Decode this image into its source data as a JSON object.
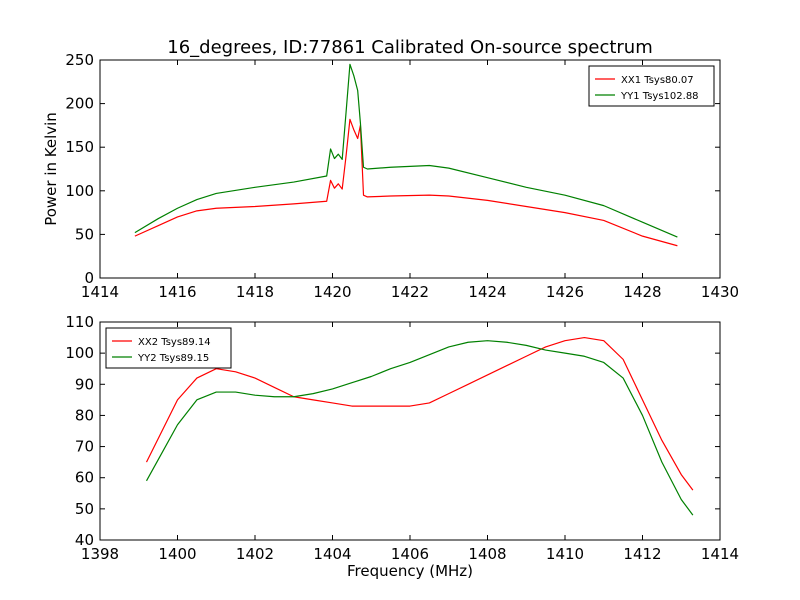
{
  "title": "16_degrees, ID:77861 Calibrated On-source spectrum",
  "colors": {
    "red": "#ff0000",
    "green": "#008000"
  },
  "chart_data": [
    {
      "type": "line",
      "ylabel": "Power in Kelvin",
      "xlabel": "",
      "xlim": [
        1414,
        1430
      ],
      "ylim": [
        0,
        250
      ],
      "xticks": [
        1414,
        1416,
        1418,
        1420,
        1422,
        1424,
        1426,
        1428,
        1430
      ],
      "yticks": [
        0,
        50,
        100,
        150,
        200,
        250
      ],
      "legend": "top-right",
      "series": [
        {
          "name": "XX1 Tsys80.07",
          "color": "#ff0000",
          "x": [
            1414.9,
            1415.5,
            1416.0,
            1416.5,
            1417.0,
            1418.0,
            1419.0,
            1419.85,
            1419.95,
            1420.05,
            1420.15,
            1420.25,
            1420.35,
            1420.45,
            1420.55,
            1420.65,
            1420.72,
            1420.8,
            1420.9,
            1421.5,
            1422.5,
            1423.0,
            1424.0,
            1425.0,
            1426.0,
            1427.0,
            1428.0,
            1428.9
          ],
          "y": [
            48,
            60,
            70,
            77,
            80,
            82,
            85,
            88,
            112,
            103,
            108,
            102,
            140,
            182,
            170,
            160,
            175,
            95,
            93,
            94,
            95,
            94,
            89,
            82,
            75,
            66,
            48,
            37
          ]
        },
        {
          "name": "YY1 Tsys102.88",
          "color": "#008000",
          "x": [
            1414.9,
            1415.5,
            1416.0,
            1416.5,
            1417.0,
            1418.0,
            1419.0,
            1419.85,
            1419.95,
            1420.05,
            1420.15,
            1420.25,
            1420.35,
            1420.45,
            1420.55,
            1420.65,
            1420.72,
            1420.8,
            1420.9,
            1421.5,
            1422.5,
            1423.0,
            1424.0,
            1425.0,
            1426.0,
            1427.0,
            1428.0,
            1428.9
          ],
          "y": [
            52,
            68,
            80,
            90,
            97,
            104,
            110,
            117,
            148,
            137,
            142,
            136,
            190,
            245,
            232,
            215,
            178,
            127,
            125,
            127,
            129,
            126,
            115,
            104,
            95,
            83,
            64,
            47
          ]
        }
      ]
    },
    {
      "type": "line",
      "ylabel": "",
      "xlabel": "Frequency (MHz)",
      "xlim": [
        1398,
        1414
      ],
      "ylim": [
        40,
        110
      ],
      "xticks": [
        1398,
        1400,
        1402,
        1404,
        1406,
        1408,
        1410,
        1412,
        1414
      ],
      "yticks": [
        40,
        50,
        60,
        70,
        80,
        90,
        100,
        110
      ],
      "legend": "top-left",
      "series": [
        {
          "name": "XX2 Tsys89.14",
          "color": "#ff0000",
          "x": [
            1399.2,
            1399.6,
            1400.0,
            1400.5,
            1401.0,
            1401.5,
            1402.0,
            1402.5,
            1403.0,
            1403.5,
            1404.0,
            1404.5,
            1405.0,
            1405.5,
            1406.0,
            1406.5,
            1407.0,
            1407.5,
            1408.0,
            1408.5,
            1409.0,
            1409.5,
            1410.0,
            1410.5,
            1411.0,
            1411.5,
            1412.0,
            1412.5,
            1413.0,
            1413.3
          ],
          "y": [
            65,
            75,
            85,
            92,
            95,
            94,
            92,
            89,
            86,
            85,
            84,
            83,
            83,
            83,
            83,
            84,
            87,
            90,
            93,
            96,
            99,
            102,
            104,
            105,
            104,
            98,
            85,
            72,
            61,
            56
          ]
        },
        {
          "name": "YY2 Tsys89.15",
          "color": "#008000",
          "x": [
            1399.2,
            1399.6,
            1400.0,
            1400.5,
            1401.0,
            1401.5,
            1402.0,
            1402.5,
            1403.0,
            1403.5,
            1404.0,
            1404.5,
            1405.0,
            1405.5,
            1406.0,
            1406.5,
            1407.0,
            1407.5,
            1408.0,
            1408.5,
            1409.0,
            1409.5,
            1410.0,
            1410.5,
            1411.0,
            1411.5,
            1412.0,
            1412.5,
            1413.0,
            1413.3
          ],
          "y": [
            59,
            68,
            77,
            85,
            87.5,
            87.5,
            86.5,
            86,
            86,
            87,
            88.5,
            90.5,
            92.5,
            95,
            97,
            99.5,
            102,
            103.5,
            104,
            103.5,
            102.5,
            101,
            100,
            99,
            97,
            92,
            80,
            65,
            53,
            48
          ]
        }
      ]
    }
  ]
}
